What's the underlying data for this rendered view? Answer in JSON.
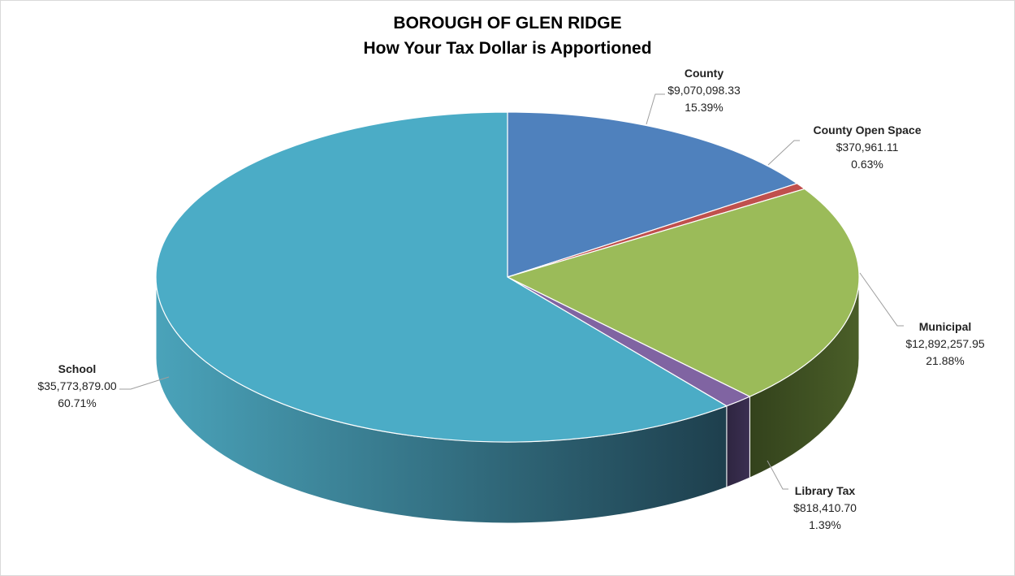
{
  "chart_data": {
    "type": "pie",
    "style": "3d",
    "title": "BOROUGH OF GLEN RIDGE",
    "subtitle": "How Your Tax Dollar is Apportioned",
    "legend": "none",
    "slices": [
      {
        "name": "County",
        "value": 9070098.33,
        "value_label": "$9,070,098.33",
        "percent_label": "15.39%",
        "color": "#4f81bd"
      },
      {
        "name": "County Open Space",
        "value": 370961.11,
        "value_label": "$370,961.11",
        "percent_label": "0.63%",
        "color": "#c0504d"
      },
      {
        "name": "Municipal",
        "value": 12892257.95,
        "value_label": "$12,892,257.95",
        "percent_label": "21.88%",
        "color": "#9bbb59"
      },
      {
        "name": "Library Tax",
        "value": 818410.7,
        "value_label": "$818,410.70",
        "percent_label": "1.39%",
        "color": "#8064a2"
      },
      {
        "name": "School",
        "value": 35773879.0,
        "value_label": "$35,773,879.00",
        "percent_label": "60.71%",
        "color": "#4bacc6"
      }
    ]
  }
}
